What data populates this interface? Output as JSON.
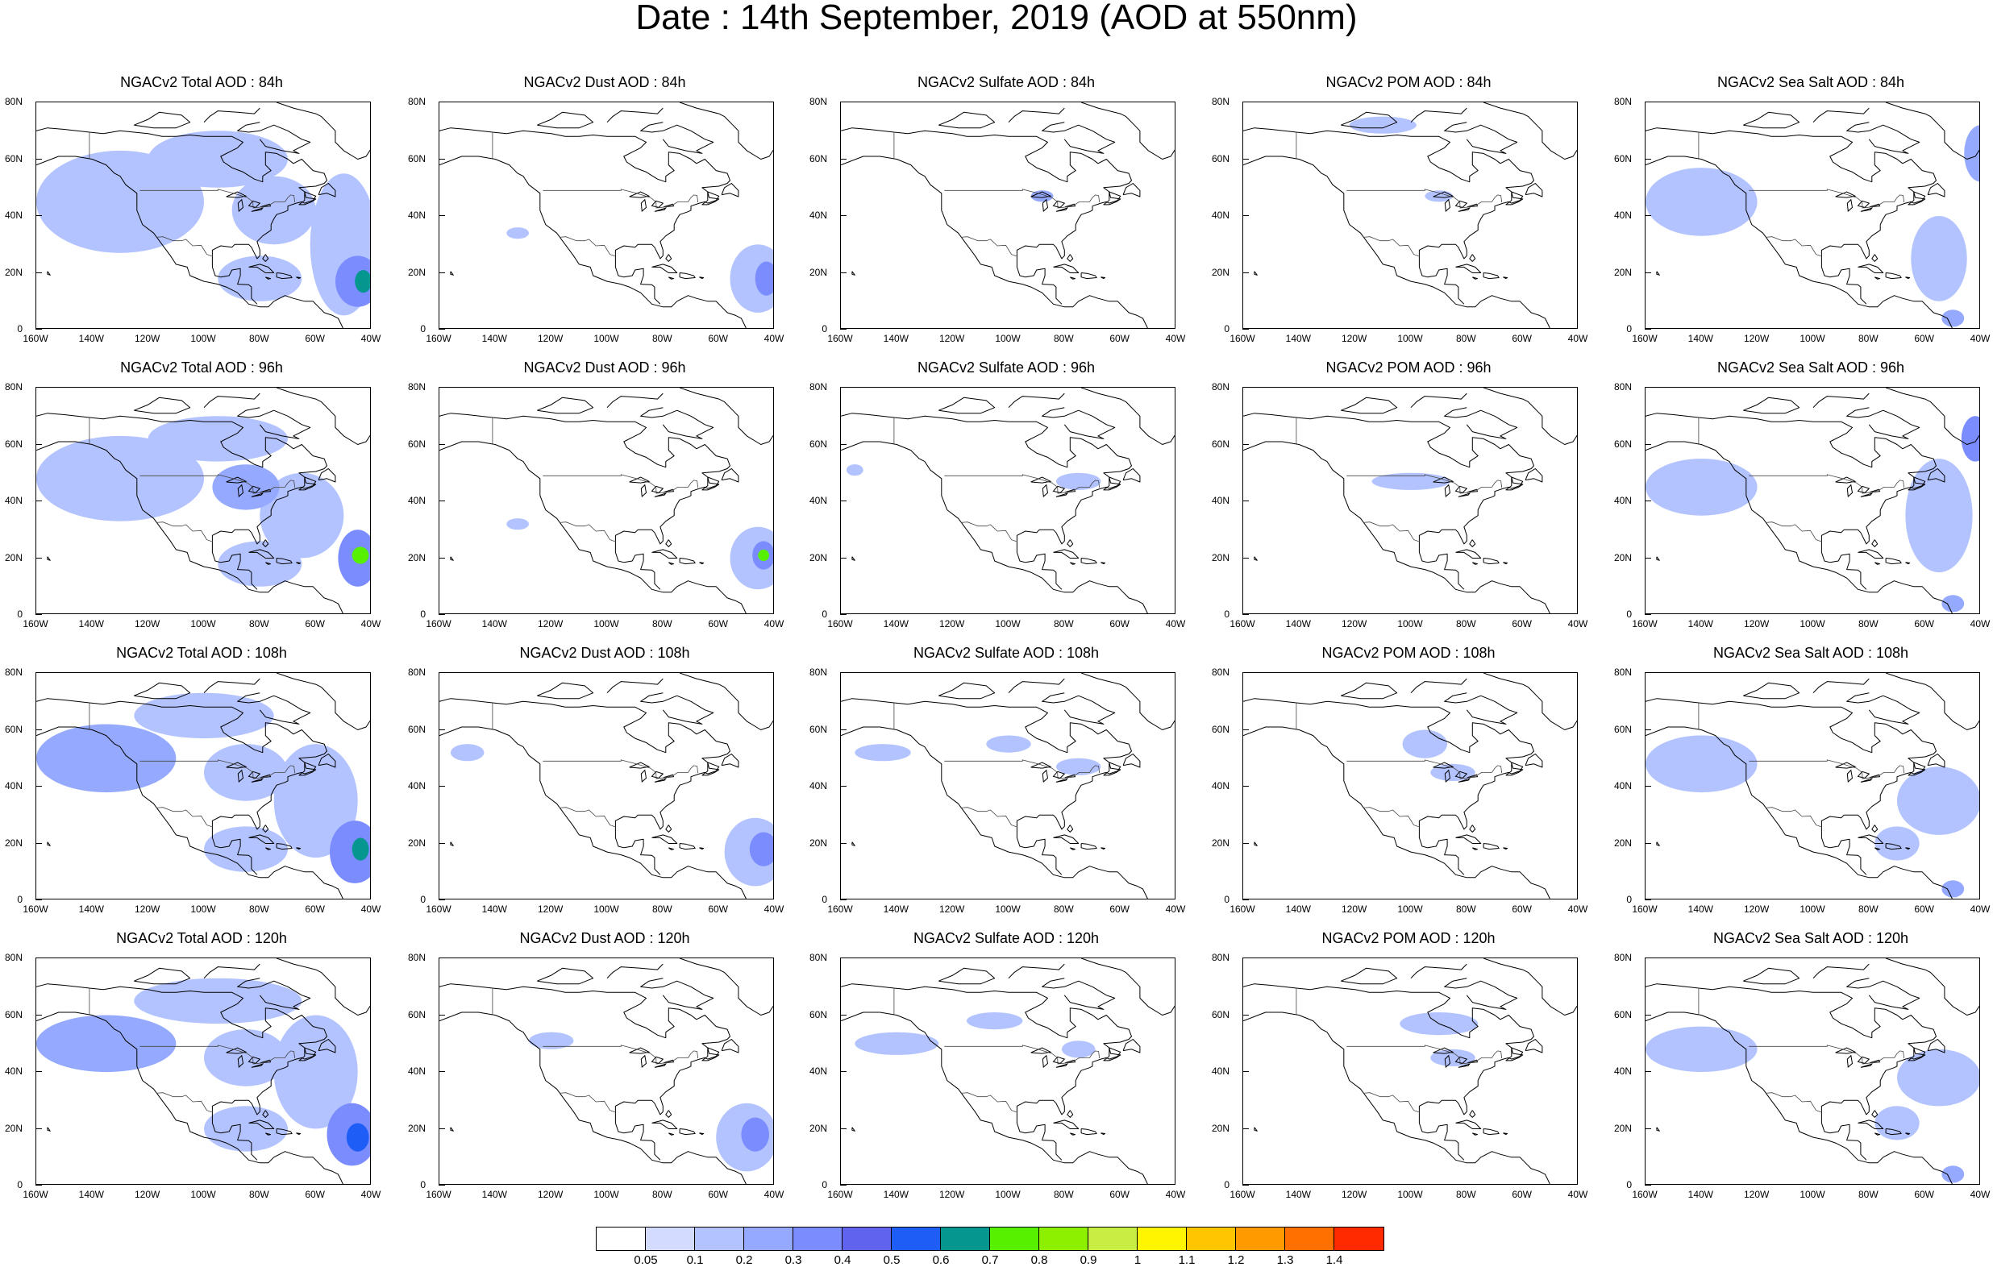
{
  "title": "Date : 14th September, 2019 (AOD at 550nm)",
  "columns": [
    {
      "species": "NGACv2 Total AOD",
      "kind": "total"
    },
    {
      "species": "NGACv2 Dust AOD",
      "kind": "dust"
    },
    {
      "species": "NGACv2 Sulfate AOD",
      "kind": "sulfate"
    },
    {
      "species": "NGACv2 POM AOD",
      "kind": "pom"
    },
    {
      "species": "NGACv2 Sea Salt AOD",
      "kind": "seasalt"
    }
  ],
  "panels": [
    [
      "NGACv2 Total AOD : 84h",
      "NGACv2 Dust AOD : 84h",
      "NGACv2 Sulfate AOD : 84h",
      "NGACv2 POM AOD : 84h",
      "NGACv2 Sea Salt AOD : 84h"
    ],
    [
      "NGACv2 Total AOD : 96h",
      "NGACv2 Dust AOD : 96h",
      "NGACv2 Sulfate AOD : 96h",
      "NGACv2 POM AOD : 96h",
      "NGACv2 Sea Salt AOD : 96h"
    ],
    [
      "NGACv2 Total AOD : 108h",
      "NGACv2 Dust AOD : 108h",
      "NGACv2 Sulfate AOD : 108h",
      "NGACv2 POM AOD : 108h",
      "NGACv2 Sea Salt AOD : 108h"
    ],
    [
      "NGACv2 Total AOD : 120h",
      "NGACv2 Dust AOD : 120h",
      "NGACv2 Sulfate AOD : 120h",
      "NGACv2 POM AOD : 120h",
      "NGACv2 Sea Salt  AOD : 120h"
    ]
  ],
  "map_extent": {
    "lon": [
      -160,
      -40
    ],
    "lat": [
      0,
      80
    ]
  },
  "lat_ticks": [
    0,
    20,
    40,
    60,
    80
  ],
  "lat_tick_labels": [
    "0",
    "20N",
    "40N",
    "60N",
    "80N"
  ],
  "lon_ticks": [
    -160,
    -140,
    -120,
    -100,
    -80,
    -60,
    -40
  ],
  "lon_tick_labels": [
    "160W",
    "140W",
    "120W",
    "100W",
    "80W",
    "60W",
    "40W"
  ],
  "colorbar": {
    "levels": [
      "0.05",
      "0.1",
      "0.2",
      "0.3",
      "0.4",
      "0.5",
      "0.6",
      "0.7",
      "0.8",
      "0.9",
      "1",
      "1.1",
      "1.2",
      "1.3",
      "1.4"
    ],
    "colors": [
      "#ffffff",
      "#d3dcff",
      "#b3c3ff",
      "#95aaff",
      "#7b8cff",
      "#5f63ee",
      "#1e5ef6",
      "#069690",
      "#56f000",
      "#8df000",
      "#c8ee44",
      "#fff500",
      "#ffc600",
      "#ff9a00",
      "#ff7000",
      "#ff2a00"
    ]
  },
  "chart_data": {
    "type": "heatmap",
    "title": "Date : 14th September, 2019 (AOD at 550nm)",
    "variable": "AOD at 550nm",
    "forecast_hours": [
      "84h",
      "96h",
      "108h",
      "120h"
    ],
    "species": [
      "Total",
      "Dust",
      "Sulfate",
      "POM",
      "Sea Salt"
    ],
    "xlim": [
      -160,
      -40
    ],
    "ylim": [
      0,
      80
    ],
    "plumes": {
      "total": [
        [
          {
            "lon": -130,
            "lat": 45,
            "rx": 30,
            "ry": 18,
            "aod": 0.1
          },
          {
            "lon": -95,
            "lat": 60,
            "rx": 25,
            "ry": 10,
            "aod": 0.1
          },
          {
            "lon": -75,
            "lat": 42,
            "rx": 15,
            "ry": 12,
            "aod": 0.1
          },
          {
            "lon": -50,
            "lat": 30,
            "rx": 12,
            "ry": 25,
            "aod": 0.1
          },
          {
            "lon": -45,
            "lat": 17,
            "rx": 8,
            "ry": 9,
            "aod": 0.3
          },
          {
            "lon": -43,
            "lat": 17,
            "rx": 3,
            "ry": 4,
            "aod": 0.6
          },
          {
            "lon": -80,
            "lat": 18,
            "rx": 15,
            "ry": 8,
            "aod": 0.1
          }
        ],
        [
          {
            "lon": -130,
            "lat": 48,
            "rx": 30,
            "ry": 15,
            "aod": 0.1
          },
          {
            "lon": -95,
            "lat": 62,
            "rx": 25,
            "ry": 8,
            "aod": 0.1
          },
          {
            "lon": -85,
            "lat": 45,
            "rx": 12,
            "ry": 8,
            "aod": 0.2
          },
          {
            "lon": -65,
            "lat": 35,
            "rx": 15,
            "ry": 15,
            "aod": 0.1
          },
          {
            "lon": -45,
            "lat": 20,
            "rx": 7,
            "ry": 10,
            "aod": 0.3
          },
          {
            "lon": -44,
            "lat": 21,
            "rx": 3,
            "ry": 3,
            "aod": 0.7
          },
          {
            "lon": -80,
            "lat": 18,
            "rx": 15,
            "ry": 8,
            "aod": 0.1
          }
        ],
        [
          {
            "lon": -135,
            "lat": 50,
            "rx": 25,
            "ry": 12,
            "aod": 0.2
          },
          {
            "lon": -100,
            "lat": 65,
            "rx": 25,
            "ry": 8,
            "aod": 0.1
          },
          {
            "lon": -85,
            "lat": 45,
            "rx": 15,
            "ry": 10,
            "aod": 0.1
          },
          {
            "lon": -60,
            "lat": 35,
            "rx": 15,
            "ry": 20,
            "aod": 0.1
          },
          {
            "lon": -46,
            "lat": 17,
            "rx": 9,
            "ry": 11,
            "aod": 0.3
          },
          {
            "lon": -44,
            "lat": 18,
            "rx": 3,
            "ry": 4,
            "aod": 0.6
          },
          {
            "lon": -85,
            "lat": 18,
            "rx": 15,
            "ry": 8,
            "aod": 0.1
          }
        ],
        [
          {
            "lon": -135,
            "lat": 50,
            "rx": 25,
            "ry": 10,
            "aod": 0.2
          },
          {
            "lon": -95,
            "lat": 65,
            "rx": 30,
            "ry": 8,
            "aod": 0.1
          },
          {
            "lon": -85,
            "lat": 45,
            "rx": 15,
            "ry": 10,
            "aod": 0.1
          },
          {
            "lon": -60,
            "lat": 40,
            "rx": 15,
            "ry": 20,
            "aod": 0.1
          },
          {
            "lon": -47,
            "lat": 18,
            "rx": 9,
            "ry": 11,
            "aod": 0.3
          },
          {
            "lon": -45,
            "lat": 17,
            "rx": 4,
            "ry": 5,
            "aod": 0.5
          },
          {
            "lon": -85,
            "lat": 20,
            "rx": 15,
            "ry": 8,
            "aod": 0.1
          }
        ]
      ],
      "dust": [
        [
          {
            "lon": -46,
            "lat": 18,
            "rx": 10,
            "ry": 12,
            "aod": 0.1
          },
          {
            "lon": -43,
            "lat": 18,
            "rx": 4,
            "ry": 6,
            "aod": 0.3
          },
          {
            "lon": -132,
            "lat": 34,
            "rx": 4,
            "ry": 2,
            "aod": 0.1
          }
        ],
        [
          {
            "lon": -46,
            "lat": 20,
            "rx": 10,
            "ry": 11,
            "aod": 0.1
          },
          {
            "lon": -44,
            "lat": 21,
            "rx": 4,
            "ry": 5,
            "aod": 0.3
          },
          {
            "lon": -44,
            "lat": 21,
            "rx": 2,
            "ry": 2,
            "aod": 0.7
          },
          {
            "lon": -132,
            "lat": 32,
            "rx": 4,
            "ry": 2,
            "aod": 0.1
          }
        ],
        [
          {
            "lon": -47,
            "lat": 17,
            "rx": 11,
            "ry": 12,
            "aod": 0.1
          },
          {
            "lon": -44,
            "lat": 18,
            "rx": 5,
            "ry": 6,
            "aod": 0.3
          },
          {
            "lon": -150,
            "lat": 52,
            "rx": 6,
            "ry": 3,
            "aod": 0.1
          }
        ],
        [
          {
            "lon": -50,
            "lat": 17,
            "rx": 11,
            "ry": 12,
            "aod": 0.1
          },
          {
            "lon": -47,
            "lat": 18,
            "rx": 5,
            "ry": 6,
            "aod": 0.3
          },
          {
            "lon": -120,
            "lat": 51,
            "rx": 8,
            "ry": 3,
            "aod": 0.1
          }
        ]
      ],
      "sulfate": [
        [
          {
            "lon": -88,
            "lat": 47,
            "rx": 4,
            "ry": 2,
            "aod": 0.2
          }
        ],
        [
          {
            "lon": -75,
            "lat": 47,
            "rx": 8,
            "ry": 3,
            "aod": 0.1
          },
          {
            "lon": -155,
            "lat": 51,
            "rx": 3,
            "ry": 2,
            "aod": 0.1
          }
        ],
        [
          {
            "lon": -145,
            "lat": 52,
            "rx": 10,
            "ry": 3,
            "aod": 0.1
          },
          {
            "lon": -100,
            "lat": 55,
            "rx": 8,
            "ry": 3,
            "aod": 0.1
          },
          {
            "lon": -75,
            "lat": 47,
            "rx": 8,
            "ry": 3,
            "aod": 0.1
          }
        ],
        [
          {
            "lon": -140,
            "lat": 50,
            "rx": 15,
            "ry": 4,
            "aod": 0.1
          },
          {
            "lon": -105,
            "lat": 58,
            "rx": 10,
            "ry": 3,
            "aod": 0.1
          },
          {
            "lon": -75,
            "lat": 48,
            "rx": 6,
            "ry": 3,
            "aod": 0.1
          }
        ]
      ],
      "pom": [
        [
          {
            "lon": -110,
            "lat": 72,
            "rx": 12,
            "ry": 3,
            "aod": 0.1
          },
          {
            "lon": -90,
            "lat": 47,
            "rx": 5,
            "ry": 2,
            "aod": 0.1
          }
        ],
        [
          {
            "lon": -100,
            "lat": 47,
            "rx": 14,
            "ry": 3,
            "aod": 0.1
          }
        ],
        [
          {
            "lon": -95,
            "lat": 55,
            "rx": 8,
            "ry": 5,
            "aod": 0.1
          },
          {
            "lon": -85,
            "lat": 45,
            "rx": 8,
            "ry": 3,
            "aod": 0.1
          }
        ],
        [
          {
            "lon": -90,
            "lat": 57,
            "rx": 14,
            "ry": 4,
            "aod": 0.1
          },
          {
            "lon": -85,
            "lat": 45,
            "rx": 8,
            "ry": 3,
            "aod": 0.1
          }
        ]
      ],
      "seasalt": [
        [
          {
            "lon": -140,
            "lat": 45,
            "rx": 20,
            "ry": 12,
            "aod": 0.1
          },
          {
            "lon": -55,
            "lat": 25,
            "rx": 10,
            "ry": 15,
            "aod": 0.1
          },
          {
            "lon": -40,
            "lat": 62,
            "rx": 6,
            "ry": 10,
            "aod": 0.2
          },
          {
            "lon": -50,
            "lat": 4,
            "rx": 4,
            "ry": 3,
            "aod": 0.2
          }
        ],
        [
          {
            "lon": -140,
            "lat": 45,
            "rx": 20,
            "ry": 10,
            "aod": 0.1
          },
          {
            "lon": -55,
            "lat": 35,
            "rx": 12,
            "ry": 20,
            "aod": 0.1
          },
          {
            "lon": -42,
            "lat": 62,
            "rx": 5,
            "ry": 8,
            "aod": 0.3
          },
          {
            "lon": -50,
            "lat": 4,
            "rx": 4,
            "ry": 3,
            "aod": 0.2
          }
        ],
        [
          {
            "lon": -140,
            "lat": 48,
            "rx": 20,
            "ry": 10,
            "aod": 0.1
          },
          {
            "lon": -55,
            "lat": 35,
            "rx": 15,
            "ry": 12,
            "aod": 0.1
          },
          {
            "lon": -70,
            "lat": 20,
            "rx": 8,
            "ry": 6,
            "aod": 0.1
          },
          {
            "lon": -50,
            "lat": 4,
            "rx": 4,
            "ry": 3,
            "aod": 0.2
          }
        ],
        [
          {
            "lon": -140,
            "lat": 48,
            "rx": 20,
            "ry": 8,
            "aod": 0.1
          },
          {
            "lon": -55,
            "lat": 38,
            "rx": 15,
            "ry": 10,
            "aod": 0.1
          },
          {
            "lon": -70,
            "lat": 22,
            "rx": 8,
            "ry": 6,
            "aod": 0.1
          },
          {
            "lon": -50,
            "lat": 4,
            "rx": 4,
            "ry": 3,
            "aod": 0.2
          }
        ]
      ]
    }
  }
}
